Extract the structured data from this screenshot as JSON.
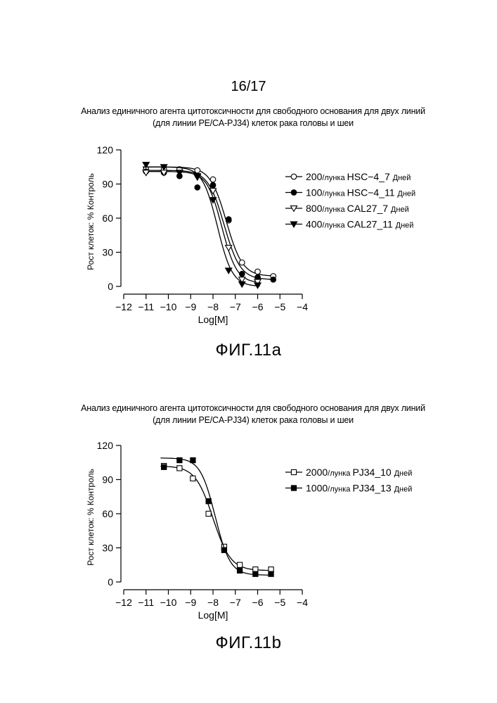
{
  "page_number": "16/17",
  "chart_data": [
    {
      "type": "scatter",
      "title_lines": [
        "Анализ единичного агента цитотоксичности для свободного основания для двух линий",
        "(для линии PE/CA-PJ34) клеток рака головы и шеи"
      ],
      "xlabel": "Log[M]",
      "ylabel": "Рост клеток: % Контроль",
      "xlim": [
        -12,
        -4
      ],
      "ylim": [
        0,
        120
      ],
      "xticks": [
        -12,
        -11,
        -10,
        -9,
        -8,
        -7,
        -6,
        -5,
        -4
      ],
      "xtick_labels": [
        "−12",
        "−11",
        "−10",
        "−9",
        "−8",
        "−7",
        "−6",
        "−5",
        "−4"
      ],
      "yticks": [
        0,
        30,
        60,
        90,
        120
      ],
      "ytick_labels": [
        "0",
        "30",
        "60",
        "90",
        "120"
      ],
      "figure_label": "ФИГ.11a",
      "legend_position": "right",
      "series": [
        {
          "name": "HSC−4_7",
          "legend_prefix": "200",
          "legend_unit": "/лунка",
          "legend_suffix": "Дней",
          "marker": "circle-open",
          "x": [
            -11,
            -10.2,
            -9.5,
            -8.7,
            -8,
            -7.3,
            -6.7,
            -6,
            -5.3
          ],
          "y": [
            103,
            103,
            103,
            102,
            94,
            58,
            21,
            13,
            9
          ],
          "fit": {
            "top": 105,
            "bottom": 9,
            "logec50": -7.4,
            "hill": 1.2
          }
        },
        {
          "name": "HSC−4_11",
          "legend_prefix": "100",
          "legend_unit": "/лунка",
          "legend_suffix": "Дней",
          "marker": "circle-filled",
          "x": [
            -11,
            -10.2,
            -9.5,
            -8.7,
            -8,
            -7.3,
            -6.7,
            -6,
            -5.3
          ],
          "y": [
            101,
            100,
            97,
            87,
            89,
            59,
            11,
            8,
            6
          ],
          "fit": {
            "top": 102,
            "bottom": 6,
            "logec50": -7.5,
            "hill": 1.2
          }
        },
        {
          "name": "CAL27_7",
          "legend_prefix": "800",
          "legend_unit": "/лунка",
          "legend_suffix": "Дней",
          "marker": "triangle-down-open",
          "x": [
            -11,
            -10.2,
            -9.5,
            -8.7,
            -8,
            -7.3,
            -6.7,
            -6
          ],
          "y": [
            100,
            100,
            100,
            96,
            84,
            34,
            6,
            4
          ],
          "fit": {
            "top": 101,
            "bottom": 3,
            "logec50": -7.6,
            "hill": 1.3
          }
        },
        {
          "name": "CAL27_11",
          "legend_prefix": "400",
          "legend_unit": "/лунка",
          "legend_suffix": "Дней",
          "marker": "triangle-down-filled",
          "x": [
            -11,
            -10.2,
            -9.5,
            -8.7,
            -8,
            -7.3,
            -6.7,
            -6
          ],
          "y": [
            107,
            105,
            100,
            97,
            76,
            14,
            2,
            1
          ],
          "fit": {
            "top": 105,
            "bottom": 0,
            "logec50": -7.8,
            "hill": 1.3
          }
        }
      ]
    },
    {
      "type": "scatter",
      "title_lines": [
        "Анализ единичного агента цитотоксичности для свободного основания для двух линий",
        "(для линии PE/CA-PJ34) клеток рака головы и шеи"
      ],
      "xlabel": "Log[M]",
      "ylabel": "Рост клеток: % Контроль",
      "xlim": [
        -12,
        -4
      ],
      "ylim": [
        0,
        120
      ],
      "xticks": [
        -12,
        -11,
        -10,
        -9,
        -8,
        -7,
        -6,
        -5,
        -4
      ],
      "xtick_labels": [
        "−12",
        "−11",
        "−10",
        "−9",
        "−8",
        "−7",
        "−6",
        "−5",
        "−4"
      ],
      "yticks": [
        0,
        30,
        60,
        90,
        120
      ],
      "ytick_labels": [
        "0",
        "30",
        "60",
        "90",
        "120"
      ],
      "figure_label": "ФИГ.11b",
      "legend_position": "right",
      "series": [
        {
          "name": "PJ34_10",
          "legend_prefix": "2000",
          "legend_unit": "/лунка",
          "legend_suffix": "Дней",
          "marker": "square-open",
          "x": [
            -10.2,
            -9.5,
            -8.9,
            -8.2,
            -7.5,
            -6.8,
            -6.1,
            -5.4
          ],
          "y": [
            102,
            100,
            91,
            60,
            31,
            15,
            11,
            11
          ],
          "fit": {
            "top": 102,
            "bottom": 10,
            "logec50": -8.0,
            "hill": 1.1
          }
        },
        {
          "name": "PJ34_13",
          "legend_prefix": "1000",
          "legend_unit": "/лунка",
          "legend_suffix": "Дней",
          "marker": "square-filled",
          "x": [
            -10.2,
            -9.5,
            -8.9,
            -8.2,
            -7.5,
            -6.8,
            -6.1,
            -5.4
          ],
          "y": [
            101,
            107,
            107,
            71,
            28,
            10,
            7,
            7
          ],
          "fit": {
            "top": 109,
            "bottom": 6,
            "logec50": -7.9,
            "hill": 1.3
          }
        }
      ]
    }
  ]
}
